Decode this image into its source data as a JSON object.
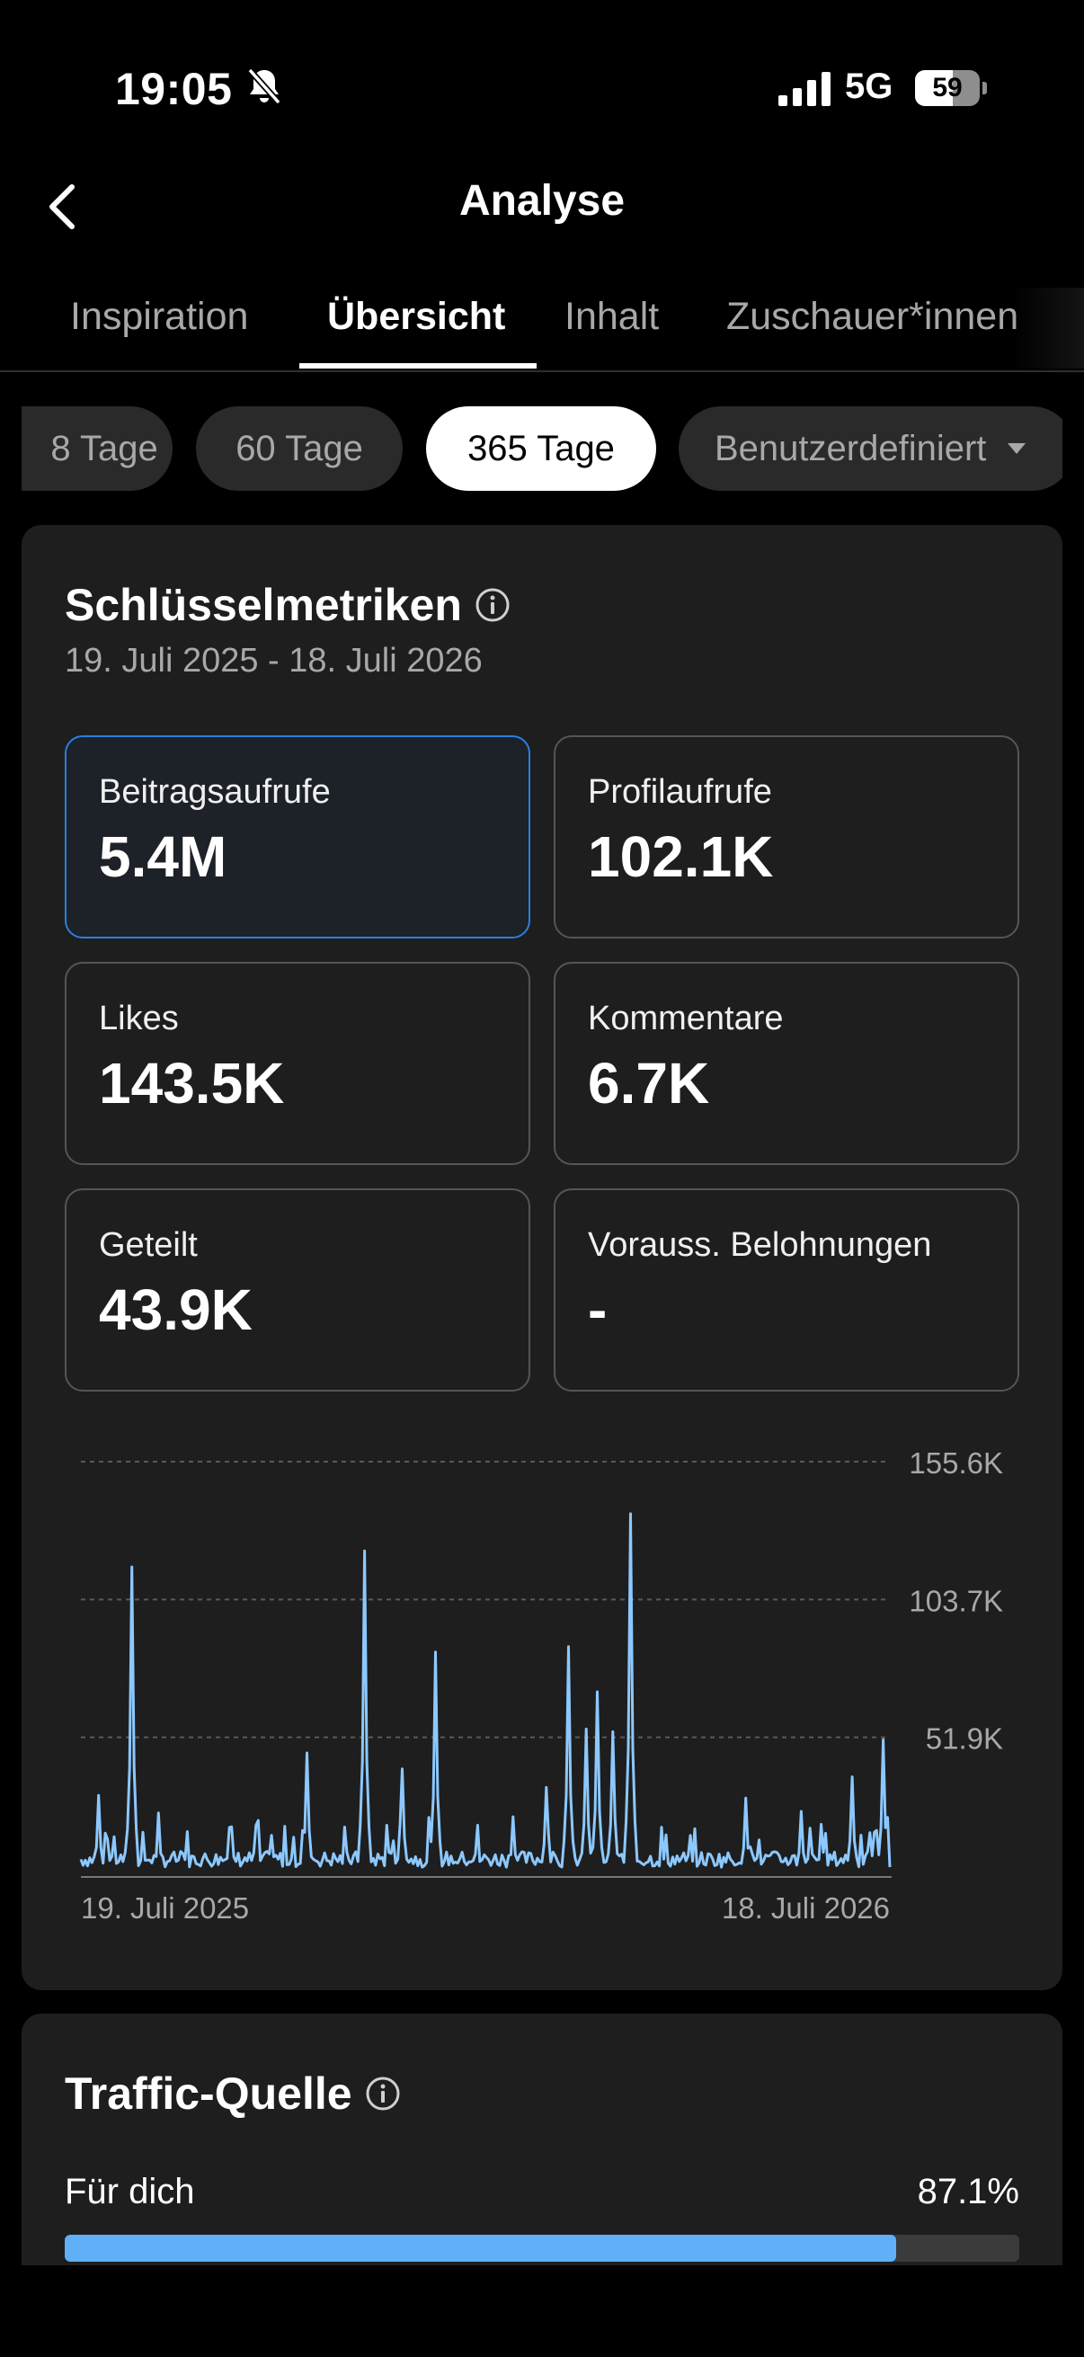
{
  "status_bar": {
    "time": "19:05",
    "network": "5G",
    "battery_percent": "59",
    "battery_level": 0.59,
    "icons": [
      "bell-muted-icon",
      "signal-icon",
      "battery-icon"
    ]
  },
  "header": {
    "title": "Analyse",
    "back_icon": "chevron-left-icon"
  },
  "tabs": [
    {
      "label": "Inspiration",
      "active": false
    },
    {
      "label": "Übersicht",
      "active": true
    },
    {
      "label": "Inhalt",
      "active": false
    },
    {
      "label": "Zuschauer*innen",
      "active": false
    }
  ],
  "ranges": [
    {
      "label": "8 Tage",
      "active": false
    },
    {
      "label": "60 Tage",
      "active": false
    },
    {
      "label": "365 Tage",
      "active": true
    },
    {
      "label": "Benutzerdefiniert",
      "active": false,
      "icon": "caret-down-icon"
    }
  ],
  "metrics_card": {
    "title": "Schlüsselmetriken",
    "date_range": "19. Juli 2025 - 18. Juli 2026",
    "info_icon": "info-icon",
    "metrics": [
      {
        "label": "Beitragsaufrufe",
        "value": "5.4M",
        "selected": true
      },
      {
        "label": "Profilaufrufe",
        "value": "102.1K",
        "selected": false
      },
      {
        "label": "Likes",
        "value": "143.5K",
        "selected": false
      },
      {
        "label": "Kommentare",
        "value": "6.7K",
        "selected": false
      },
      {
        "label": "Geteilt",
        "value": "43.9K",
        "selected": false
      },
      {
        "label": "Vorauss. Belohnungen",
        "value": "-",
        "selected": false
      }
    ]
  },
  "chart_data": {
    "type": "line",
    "x_start_label": "19. Juli 2025",
    "x_end_label": "18. Juli 2026",
    "y_ticks": [
      "51.9K",
      "103.7K",
      "155.6K"
    ],
    "y_tick_values": [
      51900,
      103700,
      155600
    ],
    "ylim": [
      0,
      155600
    ],
    "grid": true,
    "color": "#8cc8ff",
    "peaks": [
      {
        "day": 8,
        "value": 30000
      },
      {
        "day": 23,
        "value": 116000
      },
      {
        "day": 35,
        "value": 20000
      },
      {
        "day": 67,
        "value": 18000
      },
      {
        "day": 102,
        "value": 46000
      },
      {
        "day": 128,
        "value": 122000
      },
      {
        "day": 145,
        "value": 40000
      },
      {
        "day": 160,
        "value": 84000
      },
      {
        "day": 195,
        "value": 22000
      },
      {
        "day": 210,
        "value": 33000
      },
      {
        "day": 220,
        "value": 86000
      },
      {
        "day": 228,
        "value": 55000
      },
      {
        "day": 233,
        "value": 69000
      },
      {
        "day": 240,
        "value": 54000
      },
      {
        "day": 248,
        "value": 136000
      },
      {
        "day": 275,
        "value": 15000
      },
      {
        "day": 300,
        "value": 29000
      },
      {
        "day": 325,
        "value": 24000
      },
      {
        "day": 348,
        "value": 37000
      },
      {
        "day": 362,
        "value": 51000
      }
    ]
  },
  "traffic_card": {
    "title": "Traffic-Quelle",
    "info_icon": "info-icon",
    "rows": [
      {
        "label": "Für dich",
        "value": "87.1%",
        "share": 0.871
      }
    ]
  }
}
